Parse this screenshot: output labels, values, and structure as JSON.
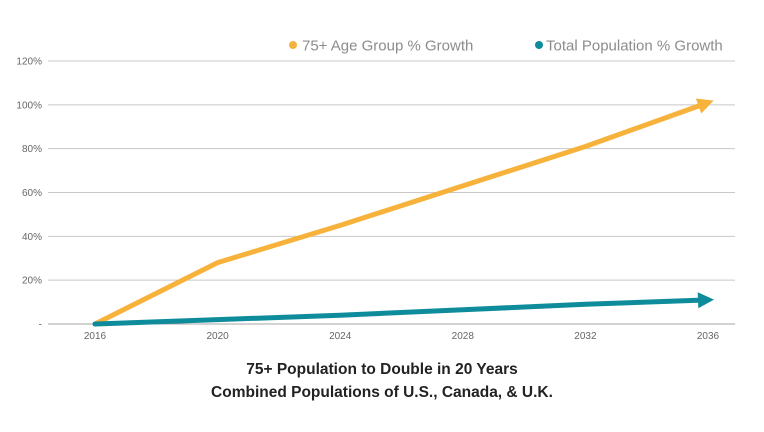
{
  "chart_data": {
    "type": "line",
    "title": "75+ Population to Double in 20 Years",
    "subtitle": "Combined Populations of U.S., Canada, & U.K.",
    "x": [
      2016,
      2020,
      2024,
      2028,
      2032,
      2036
    ],
    "x_tick_labels": [
      "2016",
      "2020",
      "2024",
      "2028",
      "2032",
      "2036"
    ],
    "y_tick_labels": [
      "-",
      "20%",
      "40%",
      "60%",
      "80%",
      "100%",
      "120%"
    ],
    "y_ticks": [
      0,
      20,
      40,
      60,
      80,
      100,
      120
    ],
    "ylim": [
      0,
      120
    ],
    "xlim": [
      2016,
      2036
    ],
    "grid": true,
    "legend_position": "top-right",
    "series": [
      {
        "name": "75+ Age Group % Growth",
        "color": "#F7B23B",
        "x": [
          2016,
          2020,
          2024,
          2028,
          2032,
          2036
        ],
        "values": [
          0,
          28,
          45,
          63,
          81,
          101
        ]
      },
      {
        "name": "Total Population % Growth",
        "color": "#0E8C9C",
        "x": [
          2016,
          2020,
          2024,
          2028,
          2032,
          2036
        ],
        "values": [
          0,
          2,
          4,
          6.5,
          9,
          11
        ]
      }
    ]
  }
}
